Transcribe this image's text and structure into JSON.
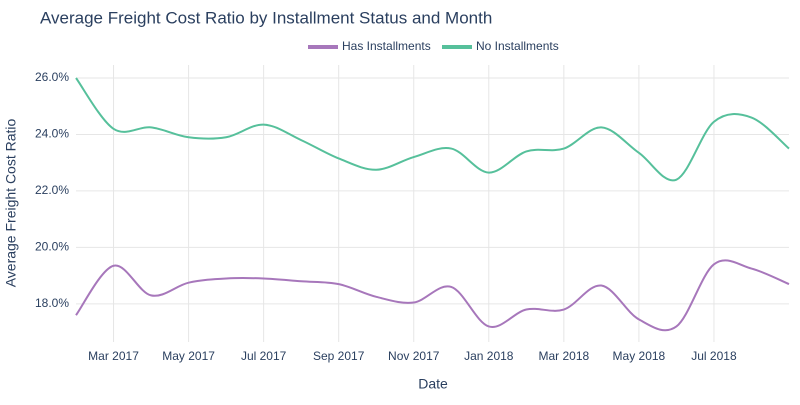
{
  "chart_data": {
    "type": "line",
    "title": "Average Freight Cost Ratio by Installment Status and Month",
    "xlabel": "Date",
    "ylabel": "Average Freight Cost Ratio",
    "x": [
      "Feb 2017",
      "Mar 2017",
      "Apr 2017",
      "May 2017",
      "Jun 2017",
      "Jul 2017",
      "Aug 2017",
      "Sep 2017",
      "Oct 2017",
      "Nov 2017",
      "Dec 2017",
      "Jan 2018",
      "Feb 2018",
      "Mar 2018",
      "Apr 2018",
      "May 2018",
      "Jun 2018",
      "Jul 2018",
      "Aug 2018",
      "Sep 2018"
    ],
    "xticks": [
      "Mar 2017",
      "May 2017",
      "Jul 2017",
      "Sep 2017",
      "Nov 2017",
      "Jan 2018",
      "Mar 2018",
      "May 2018",
      "Jul 2018"
    ],
    "series": [
      {
        "name": "Has Installments",
        "color": "#a777bb",
        "values": [
          17.6,
          19.35,
          18.3,
          18.75,
          18.9,
          18.9,
          18.8,
          18.7,
          18.25,
          18.05,
          18.6,
          17.2,
          17.8,
          17.8,
          18.65,
          17.45,
          17.2,
          19.4,
          19.25,
          18.7
        ]
      },
      {
        "name": "No Installments",
        "color": "#56c09b",
        "values": [
          26.0,
          24.2,
          24.25,
          23.9,
          23.9,
          24.35,
          23.8,
          23.15,
          22.75,
          23.2,
          23.5,
          22.65,
          23.4,
          23.5,
          24.25,
          23.35,
          22.4,
          24.45,
          24.6,
          23.5
        ]
      }
    ],
    "ylim": [
      16.65,
      26.46
    ],
    "yticks": [
      {
        "value": 18,
        "label": "18.0%"
      },
      {
        "value": 20,
        "label": "20.0%"
      },
      {
        "value": 22,
        "label": "22.0%"
      },
      {
        "value": 24,
        "label": "24.0%"
      },
      {
        "value": 26,
        "label": "26.0%"
      }
    ],
    "grid": true,
    "legend": "top"
  }
}
